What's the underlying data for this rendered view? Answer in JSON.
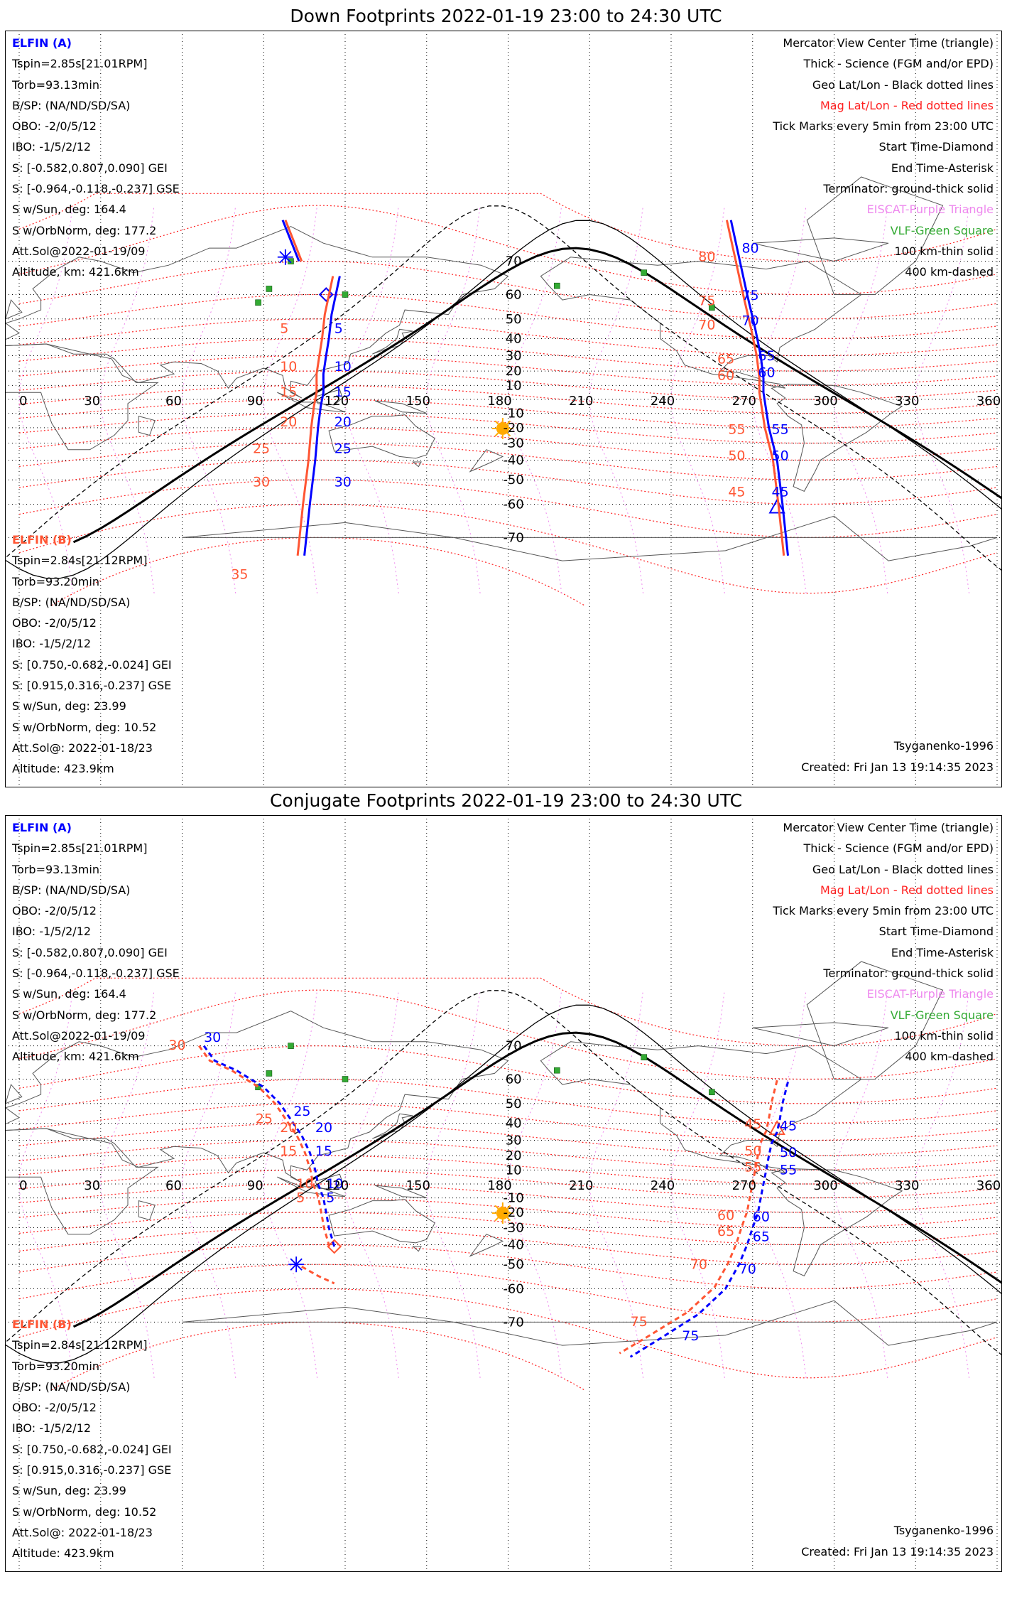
{
  "colors": {
    "elfin_a": "#0000ff",
    "elfin_b": "#ff5533",
    "mag_grid": "#ff2020",
    "eiscat": "#ee88ee",
    "vlf": "#33aa33",
    "sun": "#ffaa00",
    "coast": "#555555",
    "geo_grid": "#000000"
  },
  "map": {
    "projection": "mercator",
    "lon_ticks": [
      "0",
      "30",
      "60",
      "90",
      "120",
      "150",
      "180",
      "210",
      "240",
      "270",
      "300",
      "330",
      "360"
    ],
    "lat_ticks_north": [
      "10",
      "20",
      "30",
      "40",
      "50",
      "60",
      "70"
    ],
    "lat_ticks_south": [
      "-10",
      "-20",
      "-30",
      "-40",
      "-50",
      "-60",
      "-70"
    ]
  },
  "panels": [
    {
      "id": "down",
      "title": "Down Footprints 2022-01-19 23:00 to 24:30 UTC",
      "left_a": {
        "header": "ELFIN (A)",
        "lines": [
          "Tspin=2.85s[21.01RPM]",
          "Torb=93.13min",
          "B/SP: (NA/ND/SD/SA)",
          "OBO: -2/0/5/12",
          "IBO: -1/5/2/12",
          "S: [-0.582,0.807,0.090] GEI",
          "S: [-0.964,-0.118,-0.237] GSE",
          "S w/Sun, deg: 164.4",
          "S w/OrbNorm, deg: 177.2",
          "Att.Sol@2022-01-19/09",
          "Altitude, km: 421.6km"
        ]
      },
      "left_b": {
        "header": "ELFIN (B)",
        "lines": [
          "Tspin=2.84s[21.12RPM]",
          "Torb=93.20min",
          "B/SP: (NA/ND/SD/SA)",
          "OBO: -2/0/5/12",
          "IBO: -1/5/2/12",
          "S: [0.750,-0.682,-0.024] GEI",
          "S: [0.915,0.316,-0.237] GSE",
          "S w/Sun, deg: 23.99",
          "S w/OrbNorm, deg: 10.52",
          "Att.Sol@: 2022-01-18/23",
          "Altitude: 423.9km"
        ]
      },
      "legend": [
        "Mercator View Center Time (triangle)",
        "Thick - Science (FGM and/or EPD)",
        "Geo Lat/Lon - Black dotted lines",
        "Mag Lat/Lon - Red dotted lines",
        "Tick Marks every 5min from 23:00 UTC",
        "Start Time-Diamond",
        "End Time-Asterisk",
        "Terminator: ground-thick solid",
        "EISCAT-Purple Triangle",
        "VLF-Green Square",
        "100 km-thin solid",
        "400 km-dashed"
      ],
      "footer_left": "",
      "footer_right_1": "Tsyganenko-1996",
      "footer_right_2": "Created: Fri Jan 13 19:14:35 2023",
      "track1": {
        "a_ticks": [
          "5",
          "10",
          "15",
          "20",
          "25",
          "30"
        ],
        "b_ticks": [
          "5",
          "10",
          "15",
          "20",
          "25",
          "30",
          "35"
        ]
      },
      "track2": {
        "a_ticks": [
          "80",
          "75",
          "70",
          "65",
          "60",
          "55",
          "50",
          "45"
        ],
        "b_ticks": [
          "80",
          "75",
          "70",
          "65",
          "60",
          "55",
          "50",
          "45"
        ]
      }
    },
    {
      "id": "conj",
      "title": "Conjugate Footprints 2022-01-19 23:00 to 24:30 UTC",
      "left_a": {
        "header": "ELFIN (A)",
        "lines": [
          "Tspin=2.85s[21.01RPM]",
          "Torb=93.13min",
          "B/SP: (NA/ND/SD/SA)",
          "OBO: -2/0/5/12",
          "IBO: -1/5/2/12",
          "S: [-0.582,0.807,0.090] GEI",
          "S: [-0.964,-0.118,-0.237] GSE",
          "S w/Sun, deg: 164.4",
          "S w/OrbNorm, deg: 177.2",
          "Att.Sol@2022-01-19/09",
          "Altitude, km: 421.6km"
        ]
      },
      "left_b": {
        "header": "ELFIN (B)",
        "lines": [
          "Tspin=2.84s[21.12RPM]",
          "Torb=93.20min",
          "B/SP: (NA/ND/SD/SA)",
          "OBO: -2/0/5/12",
          "IBO: -1/5/2/12",
          "S: [0.750,-0.682,-0.024] GEI",
          "S: [0.915,0.316,-0.237] GSE",
          "S w/Sun, deg: 23.99",
          "S w/OrbNorm, deg: 10.52",
          "Att.Sol@: 2022-01-18/23",
          "Altitude: 423.9km"
        ]
      },
      "legend": [
        "Mercator View Center Time (triangle)",
        "Thick - Science (FGM and/or EPD)",
        "Geo Lat/Lon - Black dotted lines",
        "Mag Lat/Lon - Red dotted lines",
        "Tick Marks every 5min from 23:00 UTC",
        "Start Time-Diamond",
        "End Time-Asterisk",
        "Terminator: ground-thick solid",
        "EISCAT-Purple Triangle",
        "VLF-Green Square",
        "100 km-thin solid",
        "400 km-dashed"
      ],
      "footer_right_1": "Tsyganenko-1996",
      "footer_right_2": "Created: Fri Jan 13 19:14:35 2023",
      "track1": {
        "a_ticks": [
          "30",
          "25",
          "20",
          "15",
          "10",
          "5"
        ],
        "b_ticks": [
          "30",
          "25",
          "20",
          "15",
          "10",
          "5"
        ]
      },
      "track2": {
        "a_ticks": [
          "45",
          "50",
          "55",
          "60",
          "65",
          "70",
          "75"
        ],
        "b_ticks": [
          "45",
          "50",
          "55",
          "60",
          "65",
          "70",
          "75"
        ]
      }
    }
  ]
}
